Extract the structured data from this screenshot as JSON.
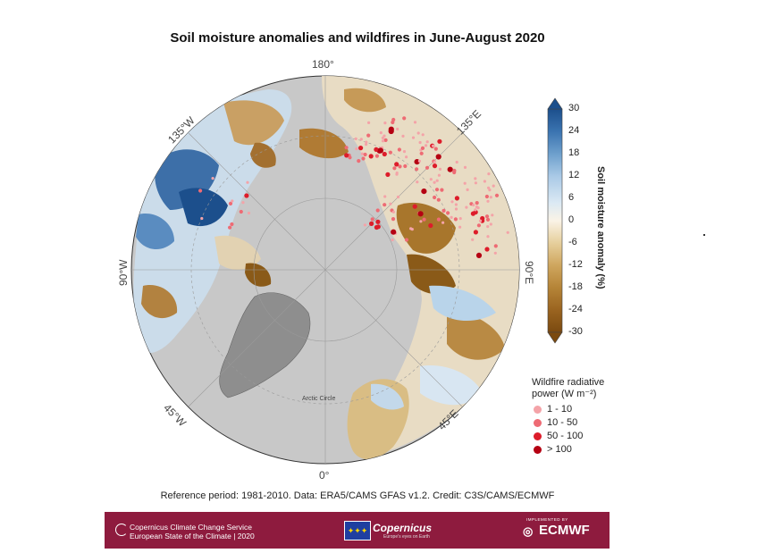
{
  "title": "Soil moisture anomalies and wildfires in June-August 2020",
  "longitude_labels": {
    "top": "180°",
    "top_right": "135°E",
    "right": "90°E",
    "bottom_right": "45°E",
    "bottom": "0°",
    "bottom_left": "45°W",
    "left": "90°W",
    "top_left": "135°W"
  },
  "arctic_circle_label": "Arctic Circle",
  "colorbar": {
    "title": "Soil moisture anomaly (%)",
    "ticks": [
      "30",
      "24",
      "18",
      "12",
      "6",
      "0",
      "-6",
      "-12",
      "-18",
      "-24",
      "-30"
    ],
    "range": [
      -30,
      30
    ],
    "colors": [
      "#7b4a10",
      "#9a6420",
      "#b58437",
      "#cfa65e",
      "#e6cf9c",
      "#faf3e6",
      "#dbe9f4",
      "#a9c9e6",
      "#6d9fcc",
      "#3a73b0",
      "#1c4f8c"
    ]
  },
  "wildfire_legend": {
    "title_line1": "Wildfire radiative",
    "title_line2": "power (W m⁻²)",
    "items": [
      {
        "label": "1 - 10",
        "color": "#f4a3a8"
      },
      {
        "label": "10 - 50",
        "color": "#ee6b74"
      },
      {
        "label": "50 - 100",
        "color": "#dd1c2a"
      },
      {
        "label": "> 100",
        "color": "#b50012"
      }
    ]
  },
  "reference": "Reference period: 1981-2010. Data: ERA5/CAMS GFAS v1.2. Credit: C3S/CAMS/ECMWF",
  "footer": {
    "c3s_line1": "Copernicus Climate Change Service",
    "c3s_line2": "European State of the Climate | 2020",
    "copernicus": "Copernicus",
    "copernicus_sub": "Europe's eyes on Earth",
    "ecmwf_pre": "IMPLEMENTED BY",
    "ecmwf": "ECMWF"
  },
  "colors": {
    "ocean": "#c8c8c8",
    "greenland": "#8e8e8e",
    "footer_bg": "#8e1b3e"
  }
}
